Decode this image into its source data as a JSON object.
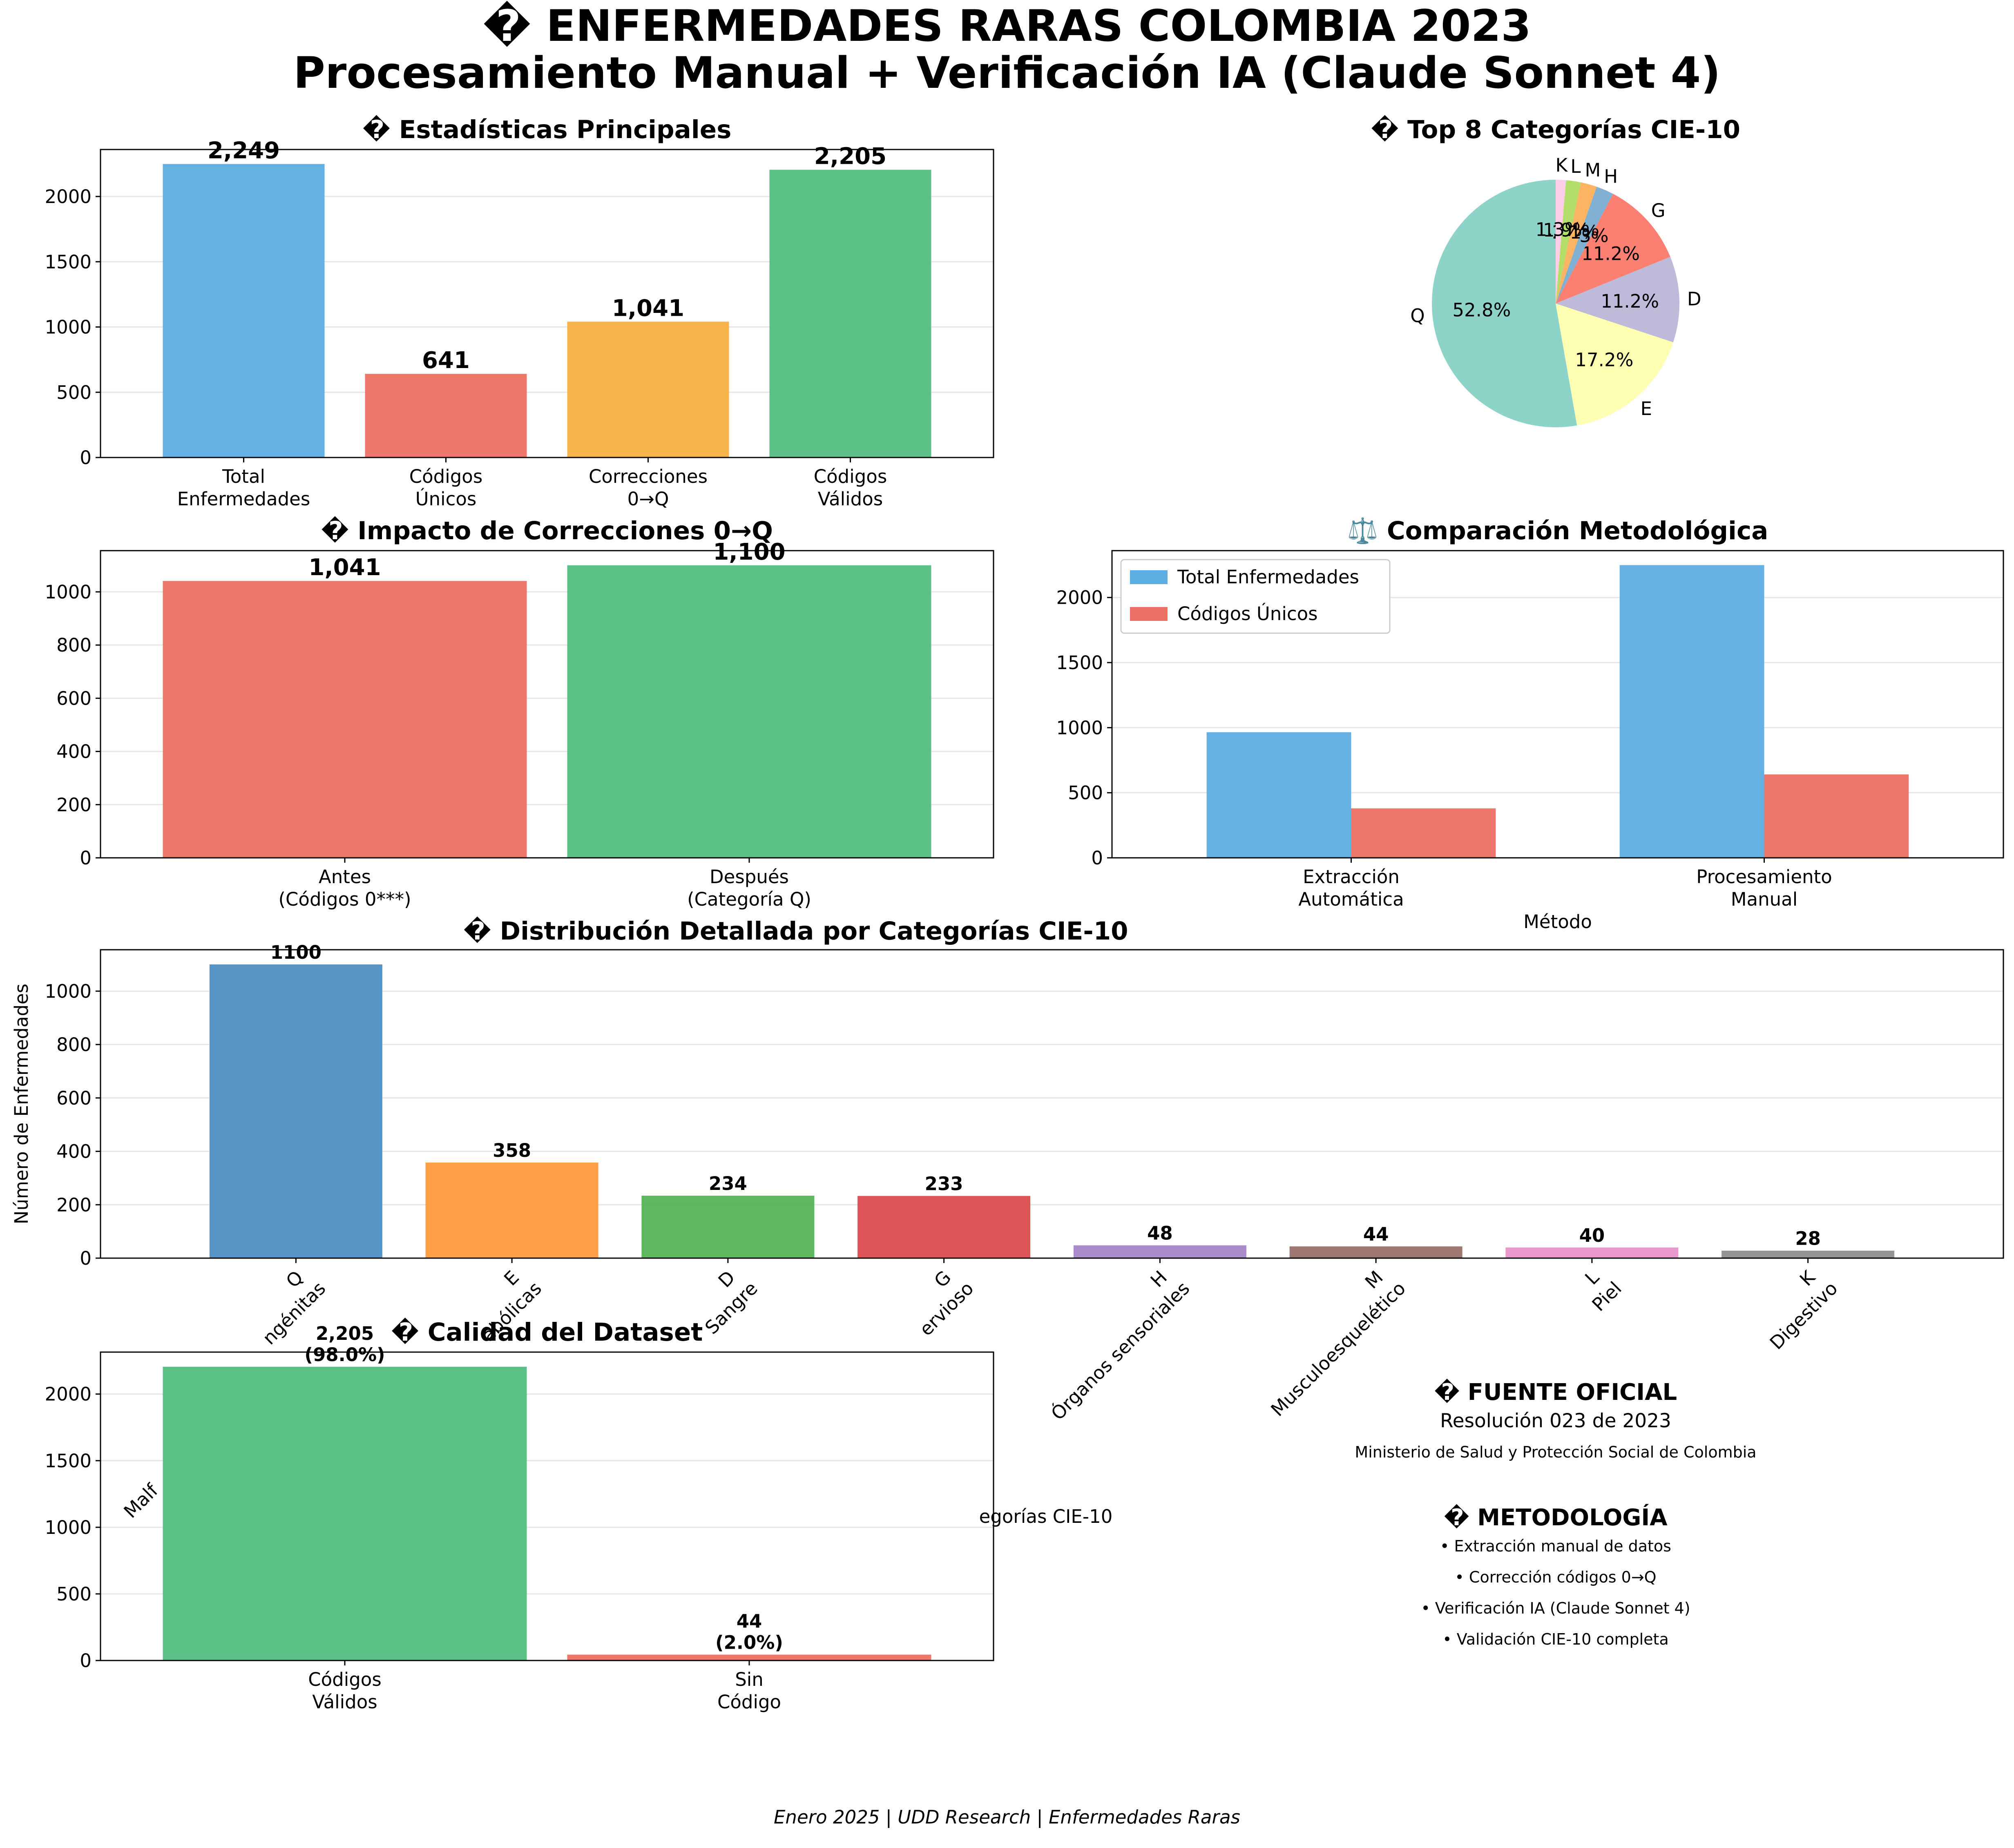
{
  "figure": {
    "title_line1": "� ENFERMEDADES RARAS COLOMBIA 2023",
    "title_line2": "Procesamiento Manual + Verificación IA (Claude Sonnet 4)",
    "footer": "Enero 2025 | UDD Research | Enfermedades Raras"
  },
  "info": {
    "source_title": "� FUENTE OFICIAL",
    "source_line1": "Resolución 023 de 2023",
    "source_line2": "Ministerio de Salud y Protección Social de Colombia",
    "method_title": "� METODOLOGÍA",
    "method_items": [
      "• Extracción manual de datos",
      "• Corrección códigos 0→Q",
      "• Verificación IA (Claude Sonnet 4)",
      "• Validación CIE-10 completa"
    ]
  },
  "colors": {
    "blue": "#5dade2",
    "red": "#ec7063",
    "orange": "#f5b041",
    "green": "#52be80"
  },
  "chart_data": [
    {
      "id": "stats",
      "type": "bar",
      "title": "� Estadísticas Principales",
      "categories": [
        "Total\nEnfermedades",
        "Códigos\nÚnicos",
        "Correcciones\n0→Q",
        "Códigos\nVálidos"
      ],
      "values": [
        2249,
        641,
        1041,
        2205
      ],
      "labels": [
        "2,249",
        "641",
        "1,041",
        "2,205"
      ],
      "colors": [
        "#5dade2",
        "#ec7063",
        "#f5b041",
        "#52be80"
      ],
      "ylim": [
        0,
        2360
      ],
      "yticks": [
        0,
        500,
        1000,
        1500,
        2000
      ],
      "grid": true
    },
    {
      "id": "pie",
      "type": "pie",
      "title": "� Top 8 Categorías CIE-10",
      "labels": [
        "Q",
        "E",
        "D",
        "G",
        "H",
        "M",
        "L",
        "K"
      ],
      "values": [
        1100,
        358,
        234,
        233,
        48,
        44,
        40,
        28
      ],
      "pct_labels": [
        "52.8%",
        "17.2%",
        "11.2%",
        "11.2%",
        "2.3%",
        "2.1%",
        "1.9%",
        "1.3%"
      ],
      "colors": [
        "#8dd3c7",
        "#ffffb3",
        "#bebada",
        "#fb8072",
        "#80b1d3",
        "#fdb462",
        "#b3de69",
        "#fccde5"
      ]
    },
    {
      "id": "impact",
      "type": "bar",
      "title": "� Impacto de Correcciones 0→Q",
      "categories": [
        "Antes\n(Códigos 0***)",
        "Después\n(Categoría Q)"
      ],
      "values": [
        1041,
        1100
      ],
      "labels": [
        "1,041",
        "1,100"
      ],
      "colors": [
        "#ec7063",
        "#52be80"
      ],
      "ylim": [
        0,
        1155
      ],
      "yticks": [
        0,
        200,
        400,
        600,
        800,
        1000
      ],
      "grid": true
    },
    {
      "id": "compare",
      "type": "bar",
      "title": "⚖️ Comparación Metodológica",
      "xlabel": "Método",
      "categories": [
        "Extracción\nAutomática",
        "Procesamiento\nManual"
      ],
      "series": [
        {
          "name": "Total Enfermedades",
          "values": [
            965,
            2249
          ],
          "color": "#5dade2"
        },
        {
          "name": "Códigos Únicos",
          "values": [
            380,
            641
          ],
          "color": "#ec7063"
        }
      ],
      "ylim": [
        0,
        2360
      ],
      "yticks": [
        0,
        500,
        1000,
        1500,
        2000
      ],
      "legend": "top-left",
      "grid": true
    },
    {
      "id": "dist",
      "type": "bar",
      "title": "� Distribución Detallada por Categorías CIE-10",
      "ylabel": "Número de Enfermedades",
      "xlabel": "egorías CIE-10",
      "categories": [
        "Q\nMalf... congénitas",
        "E\n...abólicas",
        "D\n...Sangre",
        "G\n...nervioso",
        "H\nÓrganos sensoriales",
        "M\nMusculoesquelético",
        "L\nPiel",
        "K\nDigestivo"
      ],
      "category_lines": [
        [
          "Q",
          "ngénitas",
          "Malf"
        ],
        [
          "E",
          "abólicas",
          ""
        ],
        [
          "D",
          "Sangre",
          ""
        ],
        [
          "G",
          "ervioso",
          ""
        ],
        [
          "H",
          "Órganos sensoriales",
          ""
        ],
        [
          "M",
          "Musculoesquelético",
          ""
        ],
        [
          "L",
          "Piel",
          ""
        ],
        [
          "K",
          "Digestivo",
          ""
        ]
      ],
      "values": [
        1100,
        358,
        234,
        233,
        48,
        44,
        40,
        28
      ],
      "labels": [
        "1100",
        "358",
        "234",
        "233",
        "48",
        "44",
        "40",
        "28"
      ],
      "colors": [
        "#4e8fc4",
        "#ff9b3f",
        "#55b456",
        "#dc4b4d",
        "#a585c8",
        "#9a7169",
        "#e993cd",
        "#8f8f8f"
      ],
      "ylim": [
        0,
        1155
      ],
      "yticks": [
        0,
        200,
        400,
        600,
        800,
        1000
      ],
      "grid": true
    },
    {
      "id": "quality",
      "type": "bar",
      "title": "� Calidad del Dataset",
      "categories": [
        "Códigos\nVálidos",
        "Sin\nCódigo"
      ],
      "values": [
        2205,
        44
      ],
      "labels": [
        "2,205\n(98.0%)",
        "44\n(2.0%)"
      ],
      "colors": [
        "#52be80",
        "#ec7063"
      ],
      "ylim": [
        0,
        2315
      ],
      "yticks": [
        0,
        500,
        1000,
        1500,
        2000
      ],
      "grid": true
    }
  ]
}
